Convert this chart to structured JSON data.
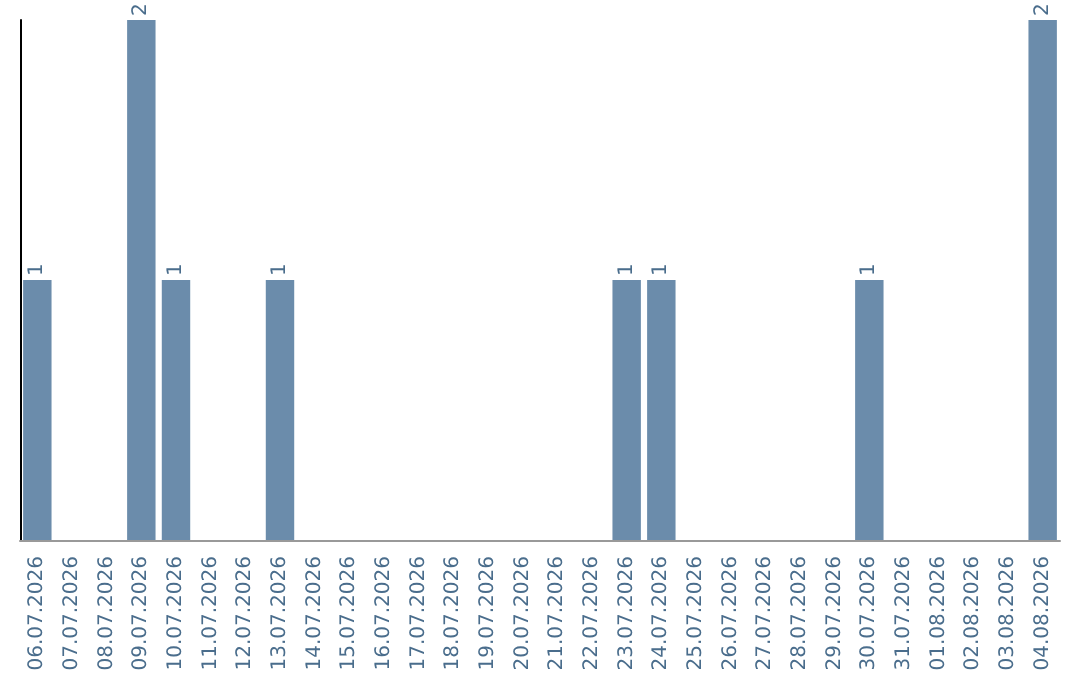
{
  "chart_data": {
    "type": "bar",
    "categories": [
      "06.07.2026",
      "07.07.2026",
      "08.07.2026",
      "09.07.2026",
      "10.07.2026",
      "11.07.2026",
      "12.07.2026",
      "13.07.2026",
      "14.07.2026",
      "15.07.2026",
      "16.07.2026",
      "17.07.2026",
      "18.07.2026",
      "19.07.2026",
      "20.07.2026",
      "21.07.2026",
      "22.07.2026",
      "23.07.2026",
      "24.07.2026",
      "25.07.2026",
      "26.07.2026",
      "27.07.2026",
      "28.07.2026",
      "29.07.2026",
      "30.07.2026",
      "31.07.2026",
      "01.08.2026",
      "02.08.2026",
      "03.08.2026",
      "04.08.2026"
    ],
    "values": [
      1,
      0,
      0,
      2,
      1,
      0,
      0,
      1,
      0,
      0,
      0,
      0,
      0,
      0,
      0,
      0,
      0,
      1,
      1,
      0,
      0,
      0,
      0,
      0,
      1,
      0,
      0,
      0,
      0,
      2
    ],
    "value_labels": [
      "1",
      null,
      null,
      "2",
      "1",
      null,
      null,
      "1",
      null,
      null,
      null,
      null,
      null,
      null,
      null,
      null,
      null,
      "1",
      "1",
      null,
      null,
      null,
      null,
      null,
      "1",
      null,
      null,
      null,
      null,
      "2"
    ],
    "color": "#6b8cab",
    "ylim": [
      0,
      2
    ],
    "tick_labels": "x"
  }
}
